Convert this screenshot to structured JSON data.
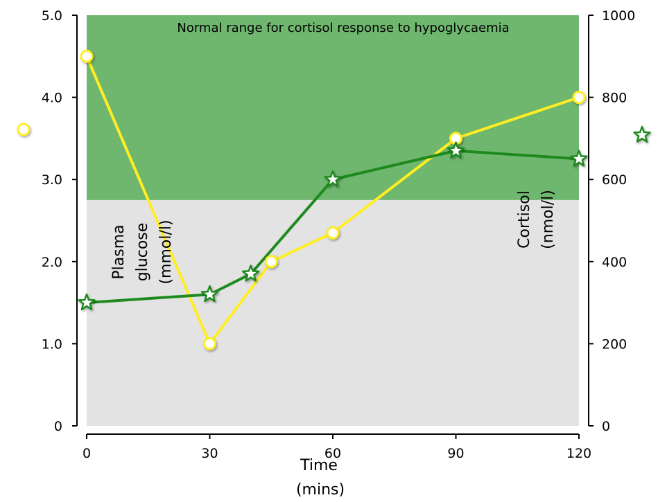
{
  "chart_data": {
    "type": "line",
    "band_label": "Normal range for cortisol response to hypoglycaemia",
    "band": {
      "axis": "right",
      "from": 550,
      "to": 1000,
      "color": "#6fb66f"
    },
    "background_color": "#e3e3e3",
    "x": {
      "ticks": [
        0,
        30,
        60,
        90,
        120
      ],
      "tick_labels": [
        "0",
        "30",
        "60",
        "90",
        "120"
      ],
      "range": [
        0,
        120
      ],
      "title_line1": "Time",
      "title_line2": "(mins)"
    },
    "y_left": {
      "ticks": [
        0,
        1,
        2,
        3,
        4,
        5
      ],
      "tick_labels": [
        "0",
        "1.0",
        "2.0",
        "3.0",
        "4.0",
        "5.0"
      ],
      "range": [
        0,
        5
      ],
      "title_line1": "Plasma",
      "title_line2": "glucose",
      "title_line3": "(mmol/l)"
    },
    "y_right": {
      "ticks": [
        0,
        200,
        400,
        600,
        800,
        1000
      ],
      "tick_labels": [
        "0",
        "200",
        "400",
        "600",
        "800",
        "1000"
      ],
      "range": [
        0,
        1000
      ],
      "title_line1": "Cortisol",
      "title_line2": "(nmol/l)"
    },
    "series": [
      {
        "key": "glucose",
        "axis": "left",
        "marker": "circle",
        "color": "#ffee22",
        "x": [
          0,
          30,
          45,
          60,
          90,
          120
        ],
        "values": [
          4.5,
          1.0,
          2.0,
          2.35,
          3.5,
          4.0
        ]
      },
      {
        "key": "cortisol",
        "axis": "right",
        "marker": "star",
        "color": "#1e8a1e",
        "x": [
          0,
          30,
          40,
          60,
          90,
          120
        ],
        "values": [
          300,
          320,
          370,
          600,
          670,
          650
        ]
      }
    ]
  }
}
